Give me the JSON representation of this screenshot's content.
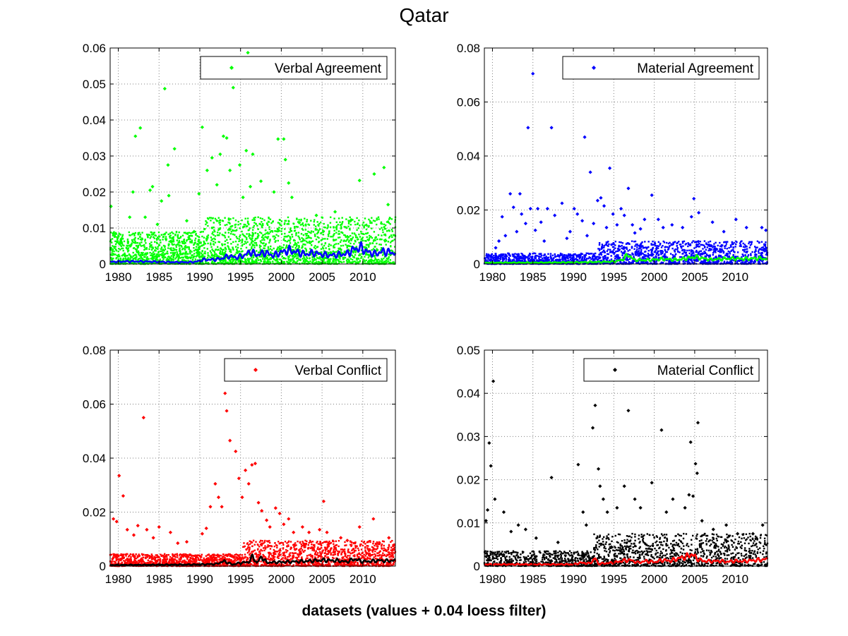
{
  "figure": {
    "title": "Qatar",
    "xcaption": "datasets (values + 0.04 loess filter)"
  },
  "chart_data": [
    {
      "type": "scatter",
      "title": "",
      "legend": "Verbal Agreement",
      "legend_position": "top-right",
      "marker_color": "#00ff00",
      "trend_color": "#0000ff",
      "xlim": [
        1979,
        2014
      ],
      "ylim": [
        0,
        0.06
      ],
      "xticks": [
        1980,
        1985,
        1990,
        1995,
        2000,
        2005,
        2010
      ],
      "yticks": [
        0,
        0.01,
        0.02,
        0.03,
        0.04,
        0.05,
        0.06
      ],
      "ytick_labels": [
        "0",
        "0.01",
        "0.02",
        "0.03",
        "0.04",
        "0.05",
        "0.06"
      ],
      "grid": true,
      "points": [
        [
          1979.1,
          0.016
        ],
        [
          1979.4,
          0.0085
        ],
        [
          1980.4,
          0.007
        ],
        [
          1981.4,
          0.013
        ],
        [
          1981.8,
          0.02
        ],
        [
          1982.1,
          0.0355
        ],
        [
          1982.7,
          0.0378
        ],
        [
          1983.3,
          0.013
        ],
        [
          1983.9,
          0.0205
        ],
        [
          1984.2,
          0.0215
        ],
        [
          1984.8,
          0.011
        ],
        [
          1985.3,
          0.0175
        ],
        [
          1985.7,
          0.0487
        ],
        [
          1986.1,
          0.0275
        ],
        [
          1986.2,
          0.019
        ],
        [
          1986.9,
          0.032
        ],
        [
          1988.4,
          0.012
        ],
        [
          1989.3,
          0.009
        ],
        [
          1989.9,
          0.0195
        ],
        [
          1990.3,
          0.038
        ],
        [
          1990.9,
          0.026
        ],
        [
          1991.5,
          0.0295
        ],
        [
          1992.1,
          0.022
        ],
        [
          1992.5,
          0.0305
        ],
        [
          1992.9,
          0.0355
        ],
        [
          1993.3,
          0.035
        ],
        [
          1993.7,
          0.026
        ],
        [
          1994.1,
          0.049
        ],
        [
          1994.3,
          0.0535
        ],
        [
          1994.9,
          0.0275
        ],
        [
          1995.3,
          0.0185
        ],
        [
          1995.7,
          0.0315
        ],
        [
          1995.9,
          0.0587
        ],
        [
          1996.2,
          0.0215
        ],
        [
          1996.5,
          0.0305
        ],
        [
          1997.5,
          0.023
        ],
        [
          1999.1,
          0.02
        ],
        [
          1999.6,
          0.0347
        ],
        [
          2000.3,
          0.0347
        ],
        [
          2000.5,
          0.029
        ],
        [
          2000.9,
          0.0225
        ],
        [
          2001.3,
          0.0185
        ],
        [
          2002.2,
          0.0115
        ],
        [
          2004.3,
          0.0135
        ],
        [
          2006.6,
          0.0145
        ],
        [
          2008.5,
          0.012
        ],
        [
          2009.6,
          0.0232
        ],
        [
          2011.4,
          0.025
        ],
        [
          2012.6,
          0.0268
        ],
        [
          2013.1,
          0.0165
        ]
      ],
      "dense_cloud": {
        "start_year": 1979,
        "end_year": 2014,
        "count": 2600,
        "segments": [
          [
            1979,
            1990.5,
            0.009
          ],
          [
            1990.5,
            2014,
            0.013
          ]
        ]
      },
      "trend": {
        "x": [
          1979,
          1981,
          1983,
          1985,
          1987,
          1988.5,
          1989.5,
          1990.5,
          1991.5,
          1992.5,
          1993.5,
          1994.5,
          1995.5,
          1996.2,
          1997,
          1998,
          1999,
          2000,
          2001,
          2002,
          2003,
          2004,
          2005,
          2006,
          2007,
          2008,
          2009,
          2009.8,
          2010.5,
          2011.5,
          2012.5,
          2013.5,
          2014
        ],
        "y": [
          0.0006,
          0.0007,
          0.0007,
          0.0006,
          0.0005,
          0.0005,
          0.0006,
          0.0012,
          0.0012,
          0.0014,
          0.0022,
          0.0018,
          0.0024,
          0.0035,
          0.0025,
          0.0032,
          0.0023,
          0.0033,
          0.0038,
          0.0032,
          0.0027,
          0.0031,
          0.0026,
          0.0024,
          0.0026,
          0.0028,
          0.0042,
          0.0045,
          0.0034,
          0.0028,
          0.0035,
          0.0032,
          0.003
        ]
      }
    },
    {
      "type": "scatter",
      "title": "",
      "legend": "Material Agreement",
      "legend_position": "top-right",
      "marker_color": "#0000ff",
      "trend_color": "#00ff00",
      "xlim": [
        1979,
        2014
      ],
      "ylim": [
        0,
        0.08
      ],
      "xticks": [
        1980,
        1985,
        1990,
        1995,
        2000,
        2005,
        2010
      ],
      "yticks": [
        0,
        0.02,
        0.04,
        0.06,
        0.08
      ],
      "ytick_labels": [
        "0",
        "0.02",
        "0.04",
        "0.06",
        "0.08"
      ],
      "grid": true,
      "points": [
        [
          1980.4,
          0.006
        ],
        [
          1980.8,
          0.0085
        ],
        [
          1981.2,
          0.0175
        ],
        [
          1981.6,
          0.0105
        ],
        [
          1982.2,
          0.026
        ],
        [
          1982.6,
          0.021
        ],
        [
          1983,
          0.012
        ],
        [
          1983.4,
          0.026
        ],
        [
          1983.6,
          0.0185
        ],
        [
          1984.1,
          0.015
        ],
        [
          1984.4,
          0.0505
        ],
        [
          1984.7,
          0.0205
        ],
        [
          1985,
          0.0705
        ],
        [
          1985.3,
          0.0125
        ],
        [
          1985.6,
          0.0205
        ],
        [
          1986,
          0.0155
        ],
        [
          1986.4,
          0.0085
        ],
        [
          1986.8,
          0.0205
        ],
        [
          1987.3,
          0.0505
        ],
        [
          1987.7,
          0.018
        ],
        [
          1988.6,
          0.0225
        ],
        [
          1989.2,
          0.0095
        ],
        [
          1989.6,
          0.012
        ],
        [
          1990.1,
          0.0205
        ],
        [
          1990.5,
          0.0185
        ],
        [
          1991.1,
          0.016
        ],
        [
          1991.4,
          0.047
        ],
        [
          1991.7,
          0.0105
        ],
        [
          1992.1,
          0.034
        ],
        [
          1992.5,
          0.015
        ],
        [
          1993,
          0.0235
        ],
        [
          1993.4,
          0.0245
        ],
        [
          1993.8,
          0.0215
        ],
        [
          1994.1,
          0.0135
        ],
        [
          1994.5,
          0.0355
        ],
        [
          1994.9,
          0.0185
        ],
        [
          1995.4,
          0.0145
        ],
        [
          1995.9,
          0.0205
        ],
        [
          1996.3,
          0.018
        ],
        [
          1996.8,
          0.028
        ],
        [
          1997.3,
          0.0145
        ],
        [
          1997.6,
          0.0115
        ],
        [
          1998.3,
          0.013
        ],
        [
          1998.8,
          0.0165
        ],
        [
          1999.7,
          0.0255
        ],
        [
          2000.5,
          0.0165
        ],
        [
          2001.1,
          0.0135
        ],
        [
          2002.2,
          0.0145
        ],
        [
          2003.5,
          0.0135
        ],
        [
          2004.6,
          0.0175
        ],
        [
          2004.9,
          0.0242
        ],
        [
          2005.5,
          0.019
        ],
        [
          2007.2,
          0.0155
        ],
        [
          2008.6,
          0.012
        ],
        [
          2010.1,
          0.0165
        ],
        [
          2011.4,
          0.0135
        ],
        [
          2013.3,
          0.0135
        ],
        [
          2013.8,
          0.0125
        ]
      ],
      "dense_cloud": {
        "start_year": 1979,
        "end_year": 2014,
        "count": 2000,
        "segments": [
          [
            1979,
            1993,
            0.004
          ],
          [
            1993,
            2014,
            0.0085
          ]
        ]
      },
      "trend": {
        "x": [
          1979,
          1985,
          1990,
          1992,
          1994,
          1995,
          1996,
          1996.8,
          1997.5,
          1999,
          2001,
          2003,
          2005,
          2007,
          2009,
          2011,
          2013,
          2014
        ],
        "y": [
          0.0005,
          0.0005,
          0.0006,
          0.0007,
          0.0008,
          0.0009,
          0.0015,
          0.0035,
          0.0015,
          0.0014,
          0.0018,
          0.0016,
          0.0026,
          0.0016,
          0.002,
          0.0019,
          0.0021,
          0.0018
        ]
      }
    },
    {
      "type": "scatter",
      "title": "",
      "legend": "Verbal Conflict",
      "legend_position": "top-right",
      "marker_color": "#ff0000",
      "trend_color": "#000000",
      "xlim": [
        1979,
        2014
      ],
      "ylim": [
        0,
        0.08
      ],
      "xticks": [
        1980,
        1985,
        1990,
        1995,
        2000,
        2005,
        2010
      ],
      "yticks": [
        0,
        0.02,
        0.04,
        0.06,
        0.08
      ],
      "ytick_labels": [
        "0",
        "0.02",
        "0.04",
        "0.06",
        "0.08"
      ],
      "grid": true,
      "points": [
        [
          1979.4,
          0.0175
        ],
        [
          1979.8,
          0.0165
        ],
        [
          1980.1,
          0.0335
        ],
        [
          1980.6,
          0.026
        ],
        [
          1981.1,
          0.0135
        ],
        [
          1981.9,
          0.0115
        ],
        [
          1982.4,
          0.015
        ],
        [
          1983.1,
          0.055
        ],
        [
          1983.5,
          0.0135
        ],
        [
          1984.3,
          0.0105
        ],
        [
          1985,
          0.0145
        ],
        [
          1986.4,
          0.0125
        ],
        [
          1987.3,
          0.0085
        ],
        [
          1988.4,
          0.009
        ],
        [
          1990.3,
          0.012
        ],
        [
          1990.8,
          0.014
        ],
        [
          1991.3,
          0.022
        ],
        [
          1991.9,
          0.0305
        ],
        [
          1992.3,
          0.0255
        ],
        [
          1992.7,
          0.022
        ],
        [
          1993.1,
          0.064
        ],
        [
          1993.3,
          0.0575
        ],
        [
          1993.7,
          0.0465
        ],
        [
          1994.4,
          0.0425
        ],
        [
          1994.8,
          0.0325
        ],
        [
          1995.2,
          0.0255
        ],
        [
          1995.6,
          0.0355
        ],
        [
          1996,
          0.0305
        ],
        [
          1996.4,
          0.0375
        ],
        [
          1996.8,
          0.038
        ],
        [
          1997.2,
          0.0235
        ],
        [
          1997.6,
          0.0205
        ],
        [
          1998.2,
          0.017
        ],
        [
          1998.6,
          0.0145
        ],
        [
          1999.3,
          0.0215
        ],
        [
          1999.8,
          0.0195
        ],
        [
          2000.3,
          0.0155
        ],
        [
          2000.9,
          0.0175
        ],
        [
          2001.5,
          0.0125
        ],
        [
          2002.6,
          0.0145
        ],
        [
          2003.4,
          0.0125
        ],
        [
          2004.7,
          0.0135
        ],
        [
          2005.2,
          0.024
        ],
        [
          2005.6,
          0.0125
        ],
        [
          2007.3,
          0.0105
        ],
        [
          2008.1,
          0.0095
        ],
        [
          2009.6,
          0.0145
        ],
        [
          2011.3,
          0.0175
        ],
        [
          2013.2,
          0.0105
        ]
      ],
      "dense_cloud": {
        "start_year": 1979,
        "end_year": 2014,
        "count": 2300,
        "segments": [
          [
            1979,
            1995.3,
            0.0045
          ],
          [
            1995.3,
            2014,
            0.0095
          ]
        ]
      },
      "trend": {
        "x": [
          1979,
          1985,
          1990,
          1992,
          1993,
          1994,
          1995,
          1996,
          1996.5,
          1997,
          1997.6,
          1998.2,
          1999,
          2001,
          2003,
          2005,
          2007,
          2008,
          2009,
          2010,
          2011,
          2012,
          2013,
          2014
        ],
        "y": [
          0.0004,
          0.0005,
          0.0006,
          0.0008,
          0.0018,
          0.0006,
          0.0012,
          0.0015,
          0.0035,
          0.0012,
          0.0035,
          0.0013,
          0.0014,
          0.0016,
          0.0018,
          0.0022,
          0.002,
          0.0016,
          0.0026,
          0.0017,
          0.0018,
          0.0021,
          0.0019,
          0.0021
        ]
      }
    },
    {
      "type": "scatter",
      "title": "",
      "legend": "Material Conflict",
      "legend_position": "top-right",
      "marker_color": "#000000",
      "trend_color": "#ff0000",
      "xlim": [
        1979,
        2014
      ],
      "ylim": [
        0,
        0.05
      ],
      "xticks": [
        1980,
        1985,
        1990,
        1995,
        2000,
        2005,
        2010
      ],
      "yticks": [
        0,
        0.01,
        0.02,
        0.03,
        0.04,
        0.05
      ],
      "ytick_labels": [
        "0",
        "0.01",
        "0.02",
        "0.03",
        "0.04",
        "0.05"
      ],
      "grid": true,
      "points": [
        [
          1979.2,
          0.0105
        ],
        [
          1979.4,
          0.013
        ],
        [
          1979.6,
          0.0285
        ],
        [
          1979.8,
          0.0232
        ],
        [
          1980.1,
          0.0428
        ],
        [
          1980.3,
          0.0155
        ],
        [
          1981.4,
          0.0125
        ],
        [
          1982.3,
          0.008
        ],
        [
          1983.2,
          0.0095
        ],
        [
          1984.1,
          0.0085
        ],
        [
          1985.4,
          0.0065
        ],
        [
          1987.3,
          0.0205
        ],
        [
          1988.1,
          0.0055
        ],
        [
          1990.6,
          0.0235
        ],
        [
          1991.2,
          0.0125
        ],
        [
          1991.6,
          0.0095
        ],
        [
          1992.4,
          0.032
        ],
        [
          1992.7,
          0.0372
        ],
        [
          1993.1,
          0.0225
        ],
        [
          1993.3,
          0.0185
        ],
        [
          1993.7,
          0.0155
        ],
        [
          1994.2,
          0.0125
        ],
        [
          1995.4,
          0.0135
        ],
        [
          1996.3,
          0.0185
        ],
        [
          1996.8,
          0.036
        ],
        [
          1997.6,
          0.0155
        ],
        [
          1998.3,
          0.0135
        ],
        [
          1999.7,
          0.0193
        ],
        [
          2000.9,
          0.0315
        ],
        [
          2001.5,
          0.0125
        ],
        [
          2002.3,
          0.0155
        ],
        [
          2003.8,
          0.0135
        ],
        [
          2004.3,
          0.0165
        ],
        [
          2004.5,
          0.0287
        ],
        [
          2004.8,
          0.0162
        ],
        [
          2005.1,
          0.0237
        ],
        [
          2005.3,
          0.0215
        ],
        [
          2005.4,
          0.0332
        ],
        [
          2005.9,
          0.0105
        ],
        [
          2007.3,
          0.0085
        ],
        [
          2008.9,
          0.0095
        ],
        [
          2010.3,
          0.0075
        ],
        [
          2012.2,
          0.0075
        ],
        [
          2013.4,
          0.0095
        ]
      ],
      "dense_cloud": {
        "start_year": 1979,
        "end_year": 2014,
        "count": 1700,
        "segments": [
          [
            1979,
            1992.5,
            0.0035
          ],
          [
            1992.5,
            2014,
            0.0075
          ]
        ]
      },
      "trend": {
        "x": [
          1979,
          1985,
          1990,
          1991,
          1992,
          1992.7,
          1993.1,
          1993.6,
          1995,
          1996,
          1997,
          1998,
          1999,
          2000,
          2001,
          2002,
          2003,
          2004,
          2004.7,
          2005.2,
          2006,
          2007,
          2008,
          2009,
          2010,
          2011,
          2012,
          2013,
          2014
        ],
        "y": [
          0.0004,
          0.0004,
          0.0004,
          0.0008,
          0.0006,
          0.0018,
          0.0005,
          0.0006,
          0.0008,
          0.0012,
          0.0014,
          0.0008,
          0.0012,
          0.0009,
          0.0014,
          0.0012,
          0.0018,
          0.0022,
          0.0028,
          0.0018,
          0.0012,
          0.0011,
          0.0012,
          0.001,
          0.0012,
          0.0011,
          0.0013,
          0.0014,
          0.0016
        ]
      }
    }
  ]
}
